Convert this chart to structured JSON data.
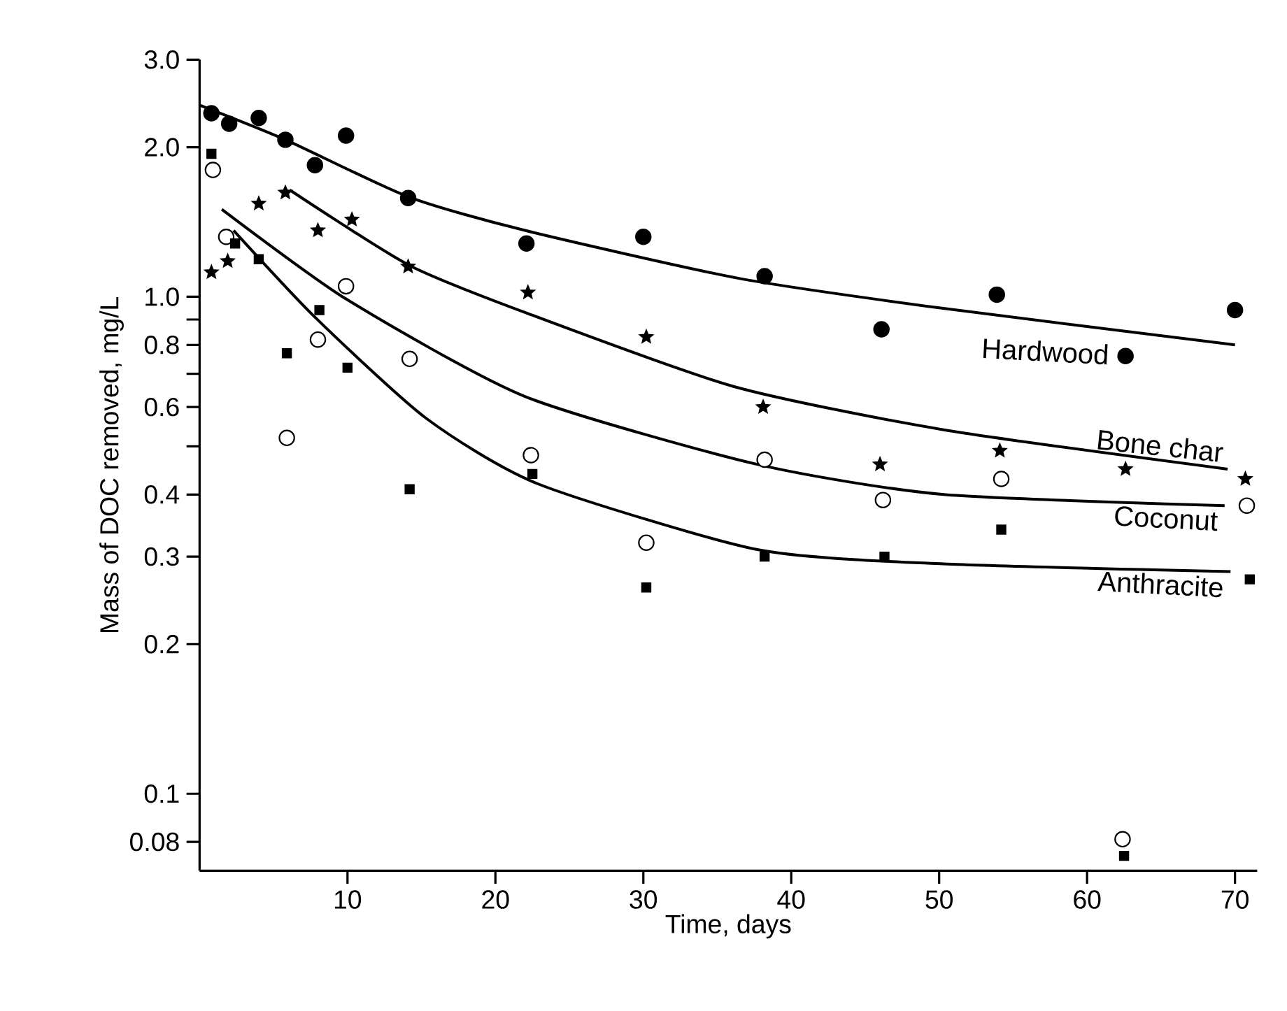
{
  "chart_data": {
    "type": "scatter",
    "xlabel": "Time, days",
    "ylabel": "Mass of DOC removed, mg/L",
    "log": "y",
    "xlim": [
      0,
      71.5
    ],
    "ylim": [
      0.07,
      3.0
    ],
    "xticks": [
      10,
      20,
      30,
      40,
      50,
      60,
      70
    ],
    "yticks": [
      {
        "value": 3,
        "label": "3.0"
      },
      {
        "value": 2,
        "label": "2.0"
      },
      {
        "value": 1,
        "label": "1.0"
      },
      {
        "value": 0.9,
        "label": null
      },
      {
        "value": 0.8,
        "label": "0.8"
      },
      {
        "value": 0.7,
        "label": null
      },
      {
        "value": 0.6,
        "label": "0.6"
      },
      {
        "value": 0.5,
        "label": null
      },
      {
        "value": 0.4,
        "label": "0.4"
      },
      {
        "value": 0.3,
        "label": "0.3"
      },
      {
        "value": 0.2,
        "label": "0.2"
      },
      {
        "value": 0.1,
        "label": "0.1"
      },
      {
        "value": 0.08,
        "label": "0.08"
      }
    ],
    "grid": false,
    "series": [
      {
        "color": "#000000",
        "marker": "circle",
        "x": [
          0.8,
          2.0,
          4.0,
          5.8,
          7.8,
          9.9,
          14.1,
          22.1,
          30.0,
          38.2,
          46.1,
          53.9,
          62.6,
          70.0
        ],
        "values": [
          2.34,
          2.23,
          2.29,
          2.07,
          1.84,
          2.11,
          1.58,
          1.28,
          1.32,
          1.1,
          0.86,
          1.01,
          0.76,
          0.94
        ]
      },
      {
        "color": "#000000",
        "marker": "star",
        "x": [
          0.8,
          1.9,
          4.0,
          5.8,
          8.0,
          10.3,
          14.1,
          22.2,
          30.2,
          38.1,
          46.0,
          54.1,
          62.6,
          70.7
        ],
        "values": [
          1.12,
          1.18,
          1.54,
          1.62,
          1.36,
          1.43,
          1.15,
          1.02,
          0.83,
          0.6,
          0.46,
          0.49,
          0.45,
          0.43
        ]
      },
      {
        "color": "#ffffff",
        "marker": "circle",
        "x": [
          0.9,
          1.8,
          5.9,
          8.0,
          9.9,
          14.2,
          22.4,
          30.2,
          38.2,
          46.2,
          54.2,
          62.4,
          70.8
        ],
        "values": [
          1.8,
          1.32,
          0.52,
          0.82,
          1.05,
          0.75,
          0.48,
          0.32,
          0.47,
          0.39,
          0.43,
          0.081,
          0.38
        ]
      },
      {
        "color": "#000000",
        "marker": "square",
        "x": [
          0.8,
          2.4,
          4.0,
          5.9,
          8.1,
          10.0,
          14.2,
          22.5,
          30.2,
          38.2,
          46.3,
          54.2,
          62.5,
          71.0
        ],
        "values": [
          1.94,
          1.28,
          1.19,
          0.77,
          0.94,
          0.72,
          0.41,
          0.44,
          0.26,
          0.3,
          0.3,
          0.34,
          0.075,
          0.27
        ]
      },
      {
        "type": "line",
        "name": "Hardwood",
        "color": "#000000",
        "marker": "none",
        "x": [
          0,
          5.8,
          14.1,
          22,
          36.4,
          50,
          70
        ],
        "values": [
          2.43,
          2.07,
          1.59,
          1.36,
          1.09,
          0.95,
          0.8
        ]
      },
      {
        "type": "line",
        "name": "Bone char",
        "color": "#000000",
        "marker": "none",
        "x": [
          6.1,
          14.1,
          22,
          36.1,
          50.3,
          69.5
        ],
        "values": [
          1.64,
          1.16,
          0.93,
          0.66,
          0.54,
          0.45
        ]
      },
      {
        "type": "line",
        "name": "Coconut",
        "color": "#000000",
        "marker": "none",
        "x": [
          1.5,
          9.9,
          22,
          37.7,
          50.3,
          69.3
        ],
        "values": [
          1.5,
          0.99,
          0.63,
          0.46,
          0.4,
          0.38
        ]
      },
      {
        "type": "line",
        "name": "Anthracite",
        "color": "#000000",
        "marker": "none",
        "x": [
          2.3,
          7.8,
          15.3,
          22.9,
          37.7,
          50.3,
          69.7
        ],
        "values": [
          1.36,
          0.91,
          0.57,
          0.42,
          0.31,
          0.29,
          0.28
        ]
      }
    ]
  }
}
